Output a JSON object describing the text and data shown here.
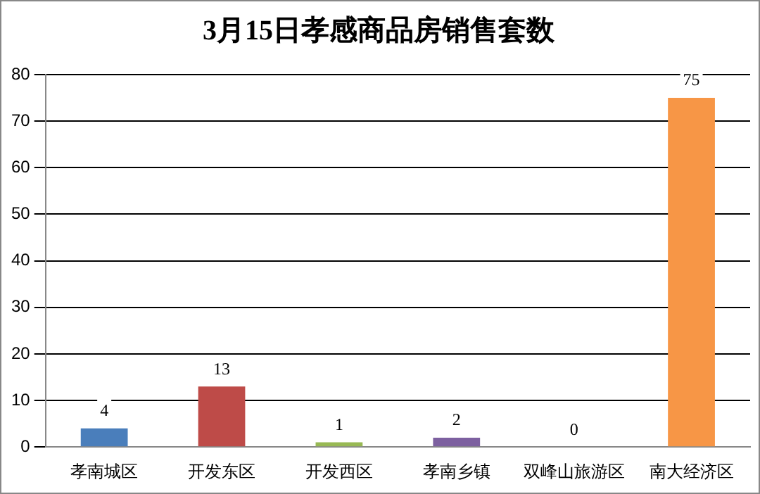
{
  "chart_data": {
    "type": "bar",
    "title": "3月15日孝感商品房销售套数",
    "categories": [
      "孝南城区",
      "开发东区",
      "开发西区",
      "孝南乡镇",
      "双峰山旅游区",
      "南大经济区"
    ],
    "values": [
      4,
      13,
      1,
      2,
      0,
      75
    ],
    "colors": [
      "#4a7ebb",
      "#be4b48",
      "#98b954",
      "#7d60a0",
      "#46aac5",
      "#f79646"
    ],
    "ylim": [
      0,
      80
    ],
    "yticks": [
      0,
      10,
      20,
      30,
      40,
      50,
      60,
      70,
      80
    ],
    "grid": "y",
    "data_labels": true,
    "legend": false
  }
}
